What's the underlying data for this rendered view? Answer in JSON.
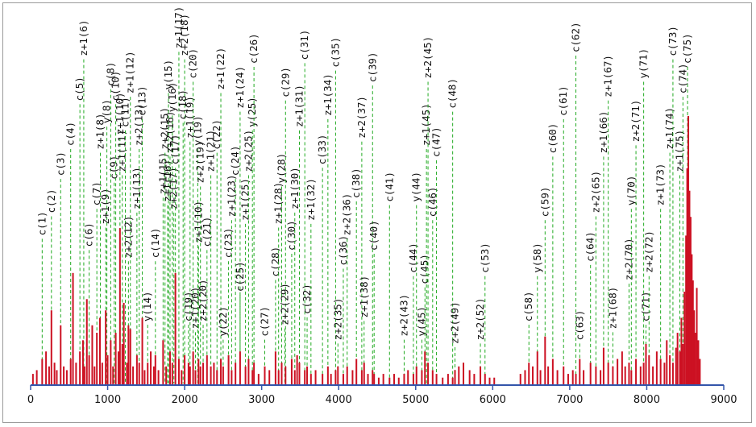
{
  "chart_data": {
    "type": "bar",
    "title": "",
    "xlabel": "",
    "ylabel": "",
    "xlim": [
      0,
      9000
    ],
    "ylim": [
      0,
      100
    ],
    "grid": false,
    "bar_color": "#cc1122",
    "annotation_line_color": "#22aa22",
    "axis_color": "#3355aa",
    "x_ticks": [
      "0",
      "1000",
      "2000",
      "3000",
      "4000",
      "5000",
      "6000",
      "7000",
      "8000",
      "9000"
    ],
    "annotations": [
      {
        "label": "c(1)",
        "x": 150,
        "text_y": 40
      },
      {
        "label": "c(2)",
        "x": 270,
        "text_y": 46
      },
      {
        "label": "c(3)",
        "x": 390,
        "text_y": 56
      },
      {
        "label": "c(4)",
        "x": 520,
        "text_y": 64
      },
      {
        "label": "c(5)",
        "x": 640,
        "text_y": 76
      },
      {
        "label": "z+1(6)",
        "x": 690,
        "text_y": 88
      },
      {
        "label": "c(6)",
        "x": 760,
        "text_y": 37
      },
      {
        "label": "c(7)",
        "x": 860,
        "text_y": 48
      },
      {
        "label": "z+1(8)",
        "x": 905,
        "text_y": 63
      },
      {
        "label": "z+1(9)",
        "x": 975,
        "text_y": 43
      },
      {
        "label": "y(8)",
        "x": 990,
        "text_y": 70
      },
      {
        "label": "c(8)",
        "x": 1040,
        "text_y": 80
      },
      {
        "label": "c(9)",
        "x": 1085,
        "text_y": 55
      },
      {
        "label": "c(10)",
        "x": 1105,
        "text_y": 76
      },
      {
        "label": "z+1(10)",
        "x": 1160,
        "text_y": 67
      },
      {
        "label": "z+1(11)",
        "x": 1190,
        "text_y": 57
      },
      {
        "label": "c(11)",
        "x": 1230,
        "text_y": 69
      },
      {
        "label": "z+2(12)",
        "x": 1270,
        "text_y": 34
      },
      {
        "label": "z+1(12)",
        "x": 1295,
        "text_y": 78
      },
      {
        "label": "z+1(13)",
        "x": 1380,
        "text_y": 47
      },
      {
        "label": "z+2(13)",
        "x": 1410,
        "text_y": 64
      },
      {
        "label": "c(13)",
        "x": 1450,
        "text_y": 72
      },
      {
        "label": "y(14)",
        "x": 1520,
        "text_y": 17
      },
      {
        "label": "c(14)",
        "x": 1620,
        "text_y": 34
      },
      {
        "label": "z+1(15)",
        "x": 1720,
        "text_y": 51
      },
      {
        "label": "z+2(15)",
        "x": 1745,
        "text_y": 63
      },
      {
        "label": "y(15)",
        "x": 1790,
        "text_y": 79
      },
      {
        "label": "z+1(16)",
        "x": 1780,
        "text_y": 49
      },
      {
        "label": "z+2(16)",
        "x": 1810,
        "text_y": 62
      },
      {
        "label": "y(16)",
        "x": 1840,
        "text_y": 73
      },
      {
        "label": "z+2(17)",
        "x": 1860,
        "text_y": 47
      },
      {
        "label": "c(17)",
        "x": 1880,
        "text_y": 59
      },
      {
        "label": "z+1(17)",
        "x": 1925,
        "text_y": 90
      },
      {
        "label": "z+2(18)",
        "x": 2000,
        "text_y": 88
      },
      {
        "label": "c(18)",
        "x": 1980,
        "text_y": 71
      },
      {
        "label": "c(19)",
        "x": 2050,
        "text_y": 17
      },
      {
        "label": "z+1(19)",
        "x": 2070,
        "text_y": 66
      },
      {
        "label": "c(20)",
        "x": 2110,
        "text_y": 82
      },
      {
        "label": "z+1(20)",
        "x": 2140,
        "text_y": 15
      },
      {
        "label": "y(19)",
        "x": 2170,
        "text_y": 64
      },
      {
        "label": "z+1(10)",
        "x": 2180,
        "text_y": 38
      },
      {
        "label": "z+2(19)",
        "x": 2205,
        "text_y": 54
      },
      {
        "label": "z+2(20)",
        "x": 2240,
        "text_y": 17
      },
      {
        "label": "c(21)",
        "x": 2290,
        "text_y": 37
      },
      {
        "label": "z+1(21)",
        "x": 2340,
        "text_y": 57
      },
      {
        "label": "c(22)",
        "x": 2420,
        "text_y": 63
      },
      {
        "label": "z+1(22)",
        "x": 2470,
        "text_y": 79
      },
      {
        "label": "y(22)",
        "x": 2500,
        "text_y": 13
      },
      {
        "label": "c(23)",
        "x": 2570,
        "text_y": 34
      },
      {
        "label": "z+1(23)",
        "x": 2610,
        "text_y": 45
      },
      {
        "label": "c(24)",
        "x": 2660,
        "text_y": 56
      },
      {
        "label": "z+1(24)",
        "x": 2720,
        "text_y": 74
      },
      {
        "label": "c(25)",
        "x": 2720,
        "text_y": 25
      },
      {
        "label": "z+1(25)",
        "x": 2790,
        "text_y": 44
      },
      {
        "label": "z+2(25)",
        "x": 2830,
        "text_y": 57
      },
      {
        "label": "y(25)",
        "x": 2880,
        "text_y": 69
      },
      {
        "label": "c(26)",
        "x": 2900,
        "text_y": 86
      },
      {
        "label": "c(27)",
        "x": 3040,
        "text_y": 13
      },
      {
        "label": "c(28)",
        "x": 3180,
        "text_y": 29
      },
      {
        "label": "z+1(28)",
        "x": 3220,
        "text_y": 43
      },
      {
        "label": "y(28)",
        "x": 3260,
        "text_y": 54
      },
      {
        "label": "c(29)",
        "x": 3310,
        "text_y": 77
      },
      {
        "label": "z+2(29)",
        "x": 3300,
        "text_y": 16
      },
      {
        "label": "c(30)",
        "x": 3390,
        "text_y": 36
      },
      {
        "label": "z+1(30)",
        "x": 3430,
        "text_y": 47
      },
      {
        "label": "z+1(31)",
        "x": 3490,
        "text_y": 69
      },
      {
        "label": "c(31)",
        "x": 3560,
        "text_y": 87
      },
      {
        "label": "c(32)",
        "x": 3590,
        "text_y": 19
      },
      {
        "label": "z+1(32)",
        "x": 3640,
        "text_y": 44
      },
      {
        "label": "c(33)",
        "x": 3790,
        "text_y": 59
      },
      {
        "label": "z+1(34)",
        "x": 3860,
        "text_y": 72
      },
      {
        "label": "c(35)",
        "x": 3960,
        "text_y": 85
      },
      {
        "label": "z+2(35)",
        "x": 3990,
        "text_y": 12
      },
      {
        "label": "c(36)",
        "x": 4060,
        "text_y": 32
      },
      {
        "label": "z+2(36)",
        "x": 4110,
        "text_y": 40
      },
      {
        "label": "c(38)",
        "x": 4230,
        "text_y": 50
      },
      {
        "label": "z+2(37)",
        "x": 4300,
        "text_y": 66
      },
      {
        "label": "c(39)",
        "x": 4440,
        "text_y": 81
      },
      {
        "label": "z+1(38)",
        "x": 4330,
        "text_y": 18
      },
      {
        "label": "c(40)",
        "x": 4460,
        "text_y": 36
      },
      {
        "label": "c(41)",
        "x": 4660,
        "text_y": 49
      },
      {
        "label": "z+2(43)",
        "x": 4850,
        "text_y": 13
      },
      {
        "label": "c(44)",
        "x": 4970,
        "text_y": 30
      },
      {
        "label": "y(44)",
        "x": 5010,
        "text_y": 49
      },
      {
        "label": "y(45)",
        "x": 5080,
        "text_y": 13
      },
      {
        "label": "c(45)",
        "x": 5120,
        "text_y": 27
      },
      {
        "label": "z+1(45)",
        "x": 5140,
        "text_y": 64
      },
      {
        "label": "z+2(45)",
        "x": 5160,
        "text_y": 82
      },
      {
        "label": "c(46)",
        "x": 5220,
        "text_y": 45
      },
      {
        "label": "c(47)",
        "x": 5270,
        "text_y": 61
      },
      {
        "label": "c(48)",
        "x": 5480,
        "text_y": 74
      },
      {
        "label": "z+2(49)",
        "x": 5510,
        "text_y": 11
      },
      {
        "label": "z+2(52)",
        "x": 5840,
        "text_y": 12
      },
      {
        "label": "c(53)",
        "x": 5900,
        "text_y": 30
      },
      {
        "label": "c(58)",
        "x": 6470,
        "text_y": 17
      },
      {
        "label": "y(58)",
        "x": 6580,
        "text_y": 30
      },
      {
        "label": "c(59)",
        "x": 6680,
        "text_y": 45
      },
      {
        "label": "c(60)",
        "x": 6780,
        "text_y": 62
      },
      {
        "label": "c(61)",
        "x": 6920,
        "text_y": 72
      },
      {
        "label": "c(62)",
        "x": 7080,
        "text_y": 89
      },
      {
        "label": "c(63)",
        "x": 7130,
        "text_y": 12
      },
      {
        "label": "c(64)",
        "x": 7270,
        "text_y": 33
      },
      {
        "label": "z+2(65)",
        "x": 7340,
        "text_y": 46
      },
      {
        "label": "z+1(66)",
        "x": 7440,
        "text_y": 62
      },
      {
        "label": "z+1(67)",
        "x": 7500,
        "text_y": 77
      },
      {
        "label": "z+1(68)",
        "x": 7560,
        "text_y": 15
      },
      {
        "label": "z+2(70)",
        "x": 7770,
        "text_y": 28
      },
      {
        "label": "y(70)",
        "x": 7800,
        "text_y": 48
      },
      {
        "label": "z+2(71)",
        "x": 7860,
        "text_y": 65
      },
      {
        "label": "y(71)",
        "x": 7960,
        "text_y": 82
      },
      {
        "label": "c(71)",
        "x": 7990,
        "text_y": 17
      },
      {
        "label": "z+2(72)",
        "x": 8030,
        "text_y": 30
      },
      {
        "label": "z+1(73)",
        "x": 8180,
        "text_y": 48
      },
      {
        "label": "z+1(74)",
        "x": 8300,
        "text_y": 63
      },
      {
        "label": "c(73)",
        "x": 8340,
        "text_y": 88
      },
      {
        "label": "z+1(75)",
        "x": 8430,
        "text_y": 57
      },
      {
        "label": "c(74)",
        "x": 8470,
        "text_y": 78
      },
      {
        "label": "c(75)",
        "x": 8530,
        "text_y": 86
      }
    ],
    "bars": [
      {
        "x": 30,
        "y": 3
      },
      {
        "x": 80,
        "y": 4
      },
      {
        "x": 150,
        "y": 7
      },
      {
        "x": 200,
        "y": 9
      },
      {
        "x": 240,
        "y": 5
      },
      {
        "x": 270,
        "y": 20
      },
      {
        "x": 310,
        "y": 6
      },
      {
        "x": 340,
        "y": 4
      },
      {
        "x": 390,
        "y": 16
      },
      {
        "x": 430,
        "y": 5
      },
      {
        "x": 470,
        "y": 4
      },
      {
        "x": 520,
        "y": 7
      },
      {
        "x": 550,
        "y": 30
      },
      {
        "x": 590,
        "y": 6
      },
      {
        "x": 640,
        "y": 9
      },
      {
        "x": 680,
        "y": 12
      },
      {
        "x": 700,
        "y": 5
      },
      {
        "x": 730,
        "y": 23
      },
      {
        "x": 760,
        "y": 8
      },
      {
        "x": 800,
        "y": 16
      },
      {
        "x": 830,
        "y": 5
      },
      {
        "x": 860,
        "y": 14
      },
      {
        "x": 900,
        "y": 18
      },
      {
        "x": 930,
        "y": 6
      },
      {
        "x": 975,
        "y": 20
      },
      {
        "x": 1000,
        "y": 8
      },
      {
        "x": 1040,
        "y": 12
      },
      {
        "x": 1070,
        "y": 5
      },
      {
        "x": 1105,
        "y": 14
      },
      {
        "x": 1140,
        "y": 9
      },
      {
        "x": 1160,
        "y": 42
      },
      {
        "x": 1190,
        "y": 11
      },
      {
        "x": 1210,
        "y": 22
      },
      {
        "x": 1250,
        "y": 6
      },
      {
        "x": 1270,
        "y": 16
      },
      {
        "x": 1295,
        "y": 15
      },
      {
        "x": 1330,
        "y": 5
      },
      {
        "x": 1380,
        "y": 8
      },
      {
        "x": 1410,
        "y": 6
      },
      {
        "x": 1450,
        "y": 18
      },
      {
        "x": 1480,
        "y": 4
      },
      {
        "x": 1520,
        "y": 6
      },
      {
        "x": 1560,
        "y": 9
      },
      {
        "x": 1600,
        "y": 5
      },
      {
        "x": 1620,
        "y": 8
      },
      {
        "x": 1660,
        "y": 4
      },
      {
        "x": 1720,
        "y": 12
      },
      {
        "x": 1760,
        "y": 5
      },
      {
        "x": 1810,
        "y": 9
      },
      {
        "x": 1840,
        "y": 6
      },
      {
        "x": 1880,
        "y": 30
      },
      {
        "x": 1925,
        "y": 7
      },
      {
        "x": 1960,
        "y": 4
      },
      {
        "x": 2000,
        "y": 8
      },
      {
        "x": 2050,
        "y": 6
      },
      {
        "x": 2070,
        "y": 5
      },
      {
        "x": 2110,
        "y": 9
      },
      {
        "x": 2140,
        "y": 4
      },
      {
        "x": 2180,
        "y": 7
      },
      {
        "x": 2205,
        "y": 5
      },
      {
        "x": 2240,
        "y": 6
      },
      {
        "x": 2290,
        "y": 8
      },
      {
        "x": 2340,
        "y": 5
      },
      {
        "x": 2380,
        "y": 6
      },
      {
        "x": 2420,
        "y": 4
      },
      {
        "x": 2470,
        "y": 7
      },
      {
        "x": 2500,
        "y": 5
      },
      {
        "x": 2570,
        "y": 8
      },
      {
        "x": 2610,
        "y": 4
      },
      {
        "x": 2660,
        "y": 6
      },
      {
        "x": 2720,
        "y": 9
      },
      {
        "x": 2790,
        "y": 5
      },
      {
        "x": 2830,
        "y": 7
      },
      {
        "x": 2880,
        "y": 4
      },
      {
        "x": 2900,
        "y": 6
      },
      {
        "x": 2960,
        "y": 3
      },
      {
        "x": 3040,
        "y": 5
      },
      {
        "x": 3100,
        "y": 4
      },
      {
        "x": 3180,
        "y": 9
      },
      {
        "x": 3220,
        "y": 4
      },
      {
        "x": 3260,
        "y": 6
      },
      {
        "x": 3310,
        "y": 5
      },
      {
        "x": 3390,
        "y": 7
      },
      {
        "x": 3430,
        "y": 4
      },
      {
        "x": 3460,
        "y": 8
      },
      {
        "x": 3490,
        "y": 6
      },
      {
        "x": 3560,
        "y": 4
      },
      {
        "x": 3590,
        "y": 5
      },
      {
        "x": 3640,
        "y": 3
      },
      {
        "x": 3700,
        "y": 4
      },
      {
        "x": 3790,
        "y": 3
      },
      {
        "x": 3860,
        "y": 5
      },
      {
        "x": 3900,
        "y": 3
      },
      {
        "x": 3960,
        "y": 4
      },
      {
        "x": 3990,
        "y": 5
      },
      {
        "x": 4060,
        "y": 3
      },
      {
        "x": 4110,
        "y": 5
      },
      {
        "x": 4180,
        "y": 4
      },
      {
        "x": 4230,
        "y": 7
      },
      {
        "x": 4300,
        "y": 4
      },
      {
        "x": 4330,
        "y": 6
      },
      {
        "x": 4380,
        "y": 3
      },
      {
        "x": 4440,
        "y": 4
      },
      {
        "x": 4460,
        "y": 3
      },
      {
        "x": 4520,
        "y": 2
      },
      {
        "x": 4580,
        "y": 3
      },
      {
        "x": 4660,
        "y": 2
      },
      {
        "x": 4720,
        "y": 3
      },
      {
        "x": 4780,
        "y": 2
      },
      {
        "x": 4850,
        "y": 3
      },
      {
        "x": 4900,
        "y": 4
      },
      {
        "x": 4970,
        "y": 3
      },
      {
        "x": 5010,
        "y": 5
      },
      {
        "x": 5080,
        "y": 4
      },
      {
        "x": 5120,
        "y": 9
      },
      {
        "x": 5160,
        "y": 6
      },
      {
        "x": 5220,
        "y": 4
      },
      {
        "x": 5270,
        "y": 3
      },
      {
        "x": 5350,
        "y": 2
      },
      {
        "x": 5420,
        "y": 3
      },
      {
        "x": 5480,
        "y": 2
      },
      {
        "x": 5510,
        "y": 4
      },
      {
        "x": 5560,
        "y": 5
      },
      {
        "x": 5620,
        "y": 6
      },
      {
        "x": 5700,
        "y": 4
      },
      {
        "x": 5760,
        "y": 3
      },
      {
        "x": 5840,
        "y": 5
      },
      {
        "x": 5900,
        "y": 3
      },
      {
        "x": 5960,
        "y": 2
      },
      {
        "x": 6020,
        "y": 2
      },
      {
        "x": 6360,
        "y": 3
      },
      {
        "x": 6420,
        "y": 4
      },
      {
        "x": 6470,
        "y": 6
      },
      {
        "x": 6520,
        "y": 5
      },
      {
        "x": 6580,
        "y": 9
      },
      {
        "x": 6620,
        "y": 4
      },
      {
        "x": 6680,
        "y": 13
      },
      {
        "x": 6720,
        "y": 5
      },
      {
        "x": 6780,
        "y": 7
      },
      {
        "x": 6840,
        "y": 4
      },
      {
        "x": 6920,
        "y": 5
      },
      {
        "x": 6980,
        "y": 3
      },
      {
        "x": 7040,
        "y": 4
      },
      {
        "x": 7080,
        "y": 3
      },
      {
        "x": 7130,
        "y": 7
      },
      {
        "x": 7180,
        "y": 4
      },
      {
        "x": 7270,
        "y": 6
      },
      {
        "x": 7340,
        "y": 5
      },
      {
        "x": 7400,
        "y": 4
      },
      {
        "x": 7440,
        "y": 10
      },
      {
        "x": 7500,
        "y": 6
      },
      {
        "x": 7560,
        "y": 5
      },
      {
        "x": 7620,
        "y": 7
      },
      {
        "x": 7680,
        "y": 9
      },
      {
        "x": 7720,
        "y": 5
      },
      {
        "x": 7770,
        "y": 6
      },
      {
        "x": 7800,
        "y": 4
      },
      {
        "x": 7860,
        "y": 7
      },
      {
        "x": 7920,
        "y": 5
      },
      {
        "x": 7960,
        "y": 6
      },
      {
        "x": 7990,
        "y": 11
      },
      {
        "x": 8030,
        "y": 8
      },
      {
        "x": 8080,
        "y": 5
      },
      {
        "x": 8130,
        "y": 9
      },
      {
        "x": 8180,
        "y": 7
      },
      {
        "x": 8230,
        "y": 6
      },
      {
        "x": 8260,
        "y": 12
      },
      {
        "x": 8300,
        "y": 8
      },
      {
        "x": 8340,
        "y": 6
      },
      {
        "x": 8380,
        "y": 10
      },
      {
        "x": 8400,
        "y": 14
      },
      {
        "x": 8430,
        "y": 9
      },
      {
        "x": 8450,
        "y": 18
      },
      {
        "x": 8470,
        "y": 11
      },
      {
        "x": 8490,
        "y": 25
      },
      {
        "x": 8510,
        "y": 40
      },
      {
        "x": 8525,
        "y": 58
      },
      {
        "x": 8540,
        "y": 72
      },
      {
        "x": 8555,
        "y": 52
      },
      {
        "x": 8570,
        "y": 45
      },
      {
        "x": 8585,
        "y": 35
      },
      {
        "x": 8600,
        "y": 28
      },
      {
        "x": 8615,
        "y": 20
      },
      {
        "x": 8630,
        "y": 14
      },
      {
        "x": 8650,
        "y": 26
      },
      {
        "x": 8670,
        "y": 12
      },
      {
        "x": 8690,
        "y": 7
      }
    ]
  }
}
